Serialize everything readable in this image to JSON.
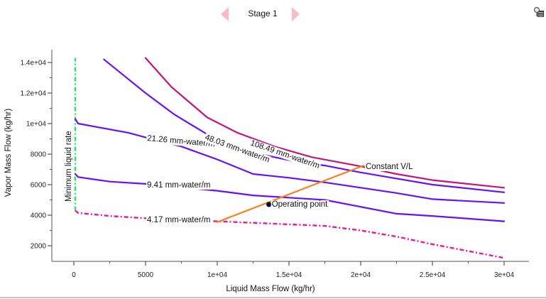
{
  "header": {
    "title": "Stage 1",
    "prev_icon": "triangle-left-icon",
    "next_icon": "triangle-right-icon",
    "tool_icon": "search-settings-icon"
  },
  "colors": {
    "arrow": "#f9bcc7",
    "min_liquid": "#22e85a",
    "purple": "#6a10f5",
    "magenta": "#c4157a",
    "pink_dash": "#f0169a",
    "orange": "#f5841e",
    "point": "#0a0a30"
  },
  "chart_data": {
    "type": "line",
    "title": "Stage 1",
    "xlabel": "Liquid Mass Flow (kg/hr)",
    "ylabel": "Vapor Mass Flow (kg/hr)",
    "xlim": [
      -1200,
      31600
    ],
    "ylim": [
      1000,
      15000
    ],
    "x_ticks": [
      0,
      5000,
      10000,
      15000,
      20000,
      25000,
      30000
    ],
    "x_tick_labels": [
      "0",
      "5000",
      "1e+04",
      "1.5e+04",
      "2e+04",
      "2.5e+04",
      "3e+04"
    ],
    "y_ticks": [
      2000,
      4000,
      6000,
      8000,
      10000,
      12000,
      14000
    ],
    "y_tick_labels": [
      "2000",
      "4000",
      "6000",
      "8000",
      "1e+04",
      "1.2e+04",
      "1.4e+04"
    ],
    "grid": false,
    "series": [
      {
        "name": "Minimum liquid rate",
        "label": "Minimum liquid rate",
        "style": "dashdot",
        "color_key": "min_liquid",
        "x": [
          100,
          100
        ],
        "y": [
          4300,
          14300
        ]
      },
      {
        "name": "4.17 mm-water/m",
        "label": "4.17 mm-water/m",
        "style": "dashdot",
        "color_key": "pink_dash",
        "x": [
          100,
          300,
          2500,
          5000,
          10000,
          15000,
          17500,
          20000,
          22500,
          25000,
          30000
        ],
        "y": [
          4300,
          4150,
          3950,
          3800,
          3600,
          3400,
          3300,
          3000,
          2600,
          2100,
          1200
        ]
      },
      {
        "name": "9.41 mm-water/m",
        "label": "9.41 mm-water/m",
        "style": "solid",
        "color_key": "purple",
        "x": [
          100,
          300,
          2500,
          5000,
          10000,
          12500,
          15000,
          17500,
          20000,
          22500,
          25000,
          30000
        ],
        "y": [
          6700,
          6500,
          6200,
          6050,
          5600,
          5300,
          5150,
          5000,
          4550,
          4100,
          3950,
          3600
        ]
      },
      {
        "name": "21.26 mm-water/m",
        "label": "21.26 mm-water/m",
        "style": "solid",
        "color_key": "purple",
        "x": [
          100,
          300,
          3800,
          5000,
          7500,
          10000,
          12500,
          15000,
          17500,
          20000,
          22500,
          25000,
          30000
        ],
        "y": [
          10300,
          10000,
          9400,
          9100,
          8500,
          7650,
          6700,
          6450,
          6150,
          5800,
          5450,
          5050,
          4800
        ]
      },
      {
        "name": "48.03 mm-water/m",
        "label": "48.03 mm-water/m",
        "style": "solid",
        "color_key": "purple",
        "x": [
          2100,
          5000,
          7000,
          10000,
          12500,
          15000,
          17500,
          20000,
          22500,
          25000,
          30000
        ],
        "y": [
          14200,
          12000,
          10600,
          8900,
          8100,
          7600,
          7250,
          6800,
          6400,
          6000,
          5500
        ]
      },
      {
        "name": "108.49 mm-water/m",
        "label": "108.49 mm-water/m",
        "style": "solid",
        "color_key": "magenta",
        "x": [
          5000,
          6800,
          9300,
          11400,
          14000,
          16600,
          20000,
          22500,
          25000,
          30000
        ],
        "y": [
          14300,
          12400,
          10400,
          9400,
          8500,
          7800,
          7200,
          6700,
          6300,
          5800
        ]
      },
      {
        "name": "Constant V/L",
        "label": "Constant V/L",
        "style": "solid",
        "color_key": "orange",
        "x": [
          10000,
          20200
        ],
        "y": [
          3550,
          7250
        ]
      }
    ],
    "points": [
      {
        "name": "Operating point",
        "label": "Operating point",
        "x": 13600,
        "y": 4700
      }
    ]
  }
}
